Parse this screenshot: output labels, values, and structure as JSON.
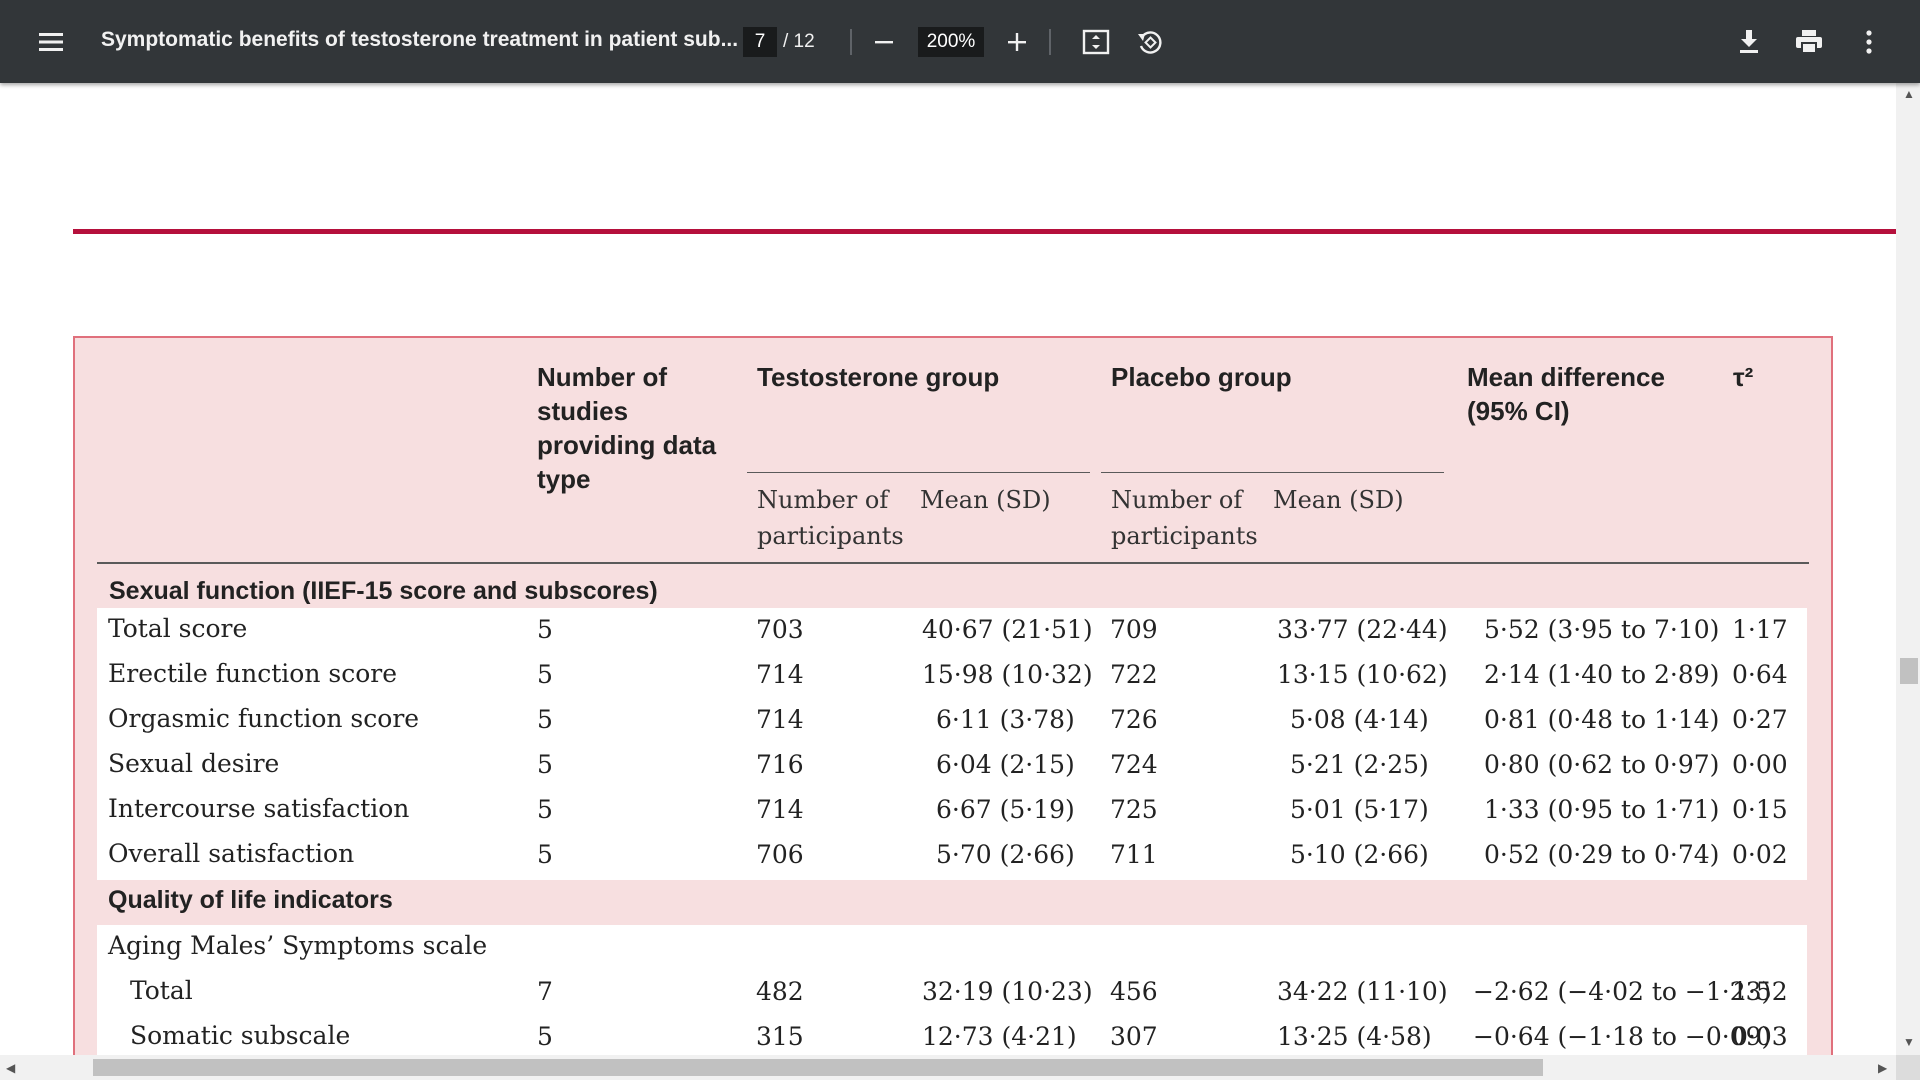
{
  "toolbar": {
    "menu_icon": "hamburger-menu-icon",
    "title": "Symptomatic benefits of testosterone treatment in patient sub...",
    "page_current": "7",
    "page_total": "/ 12",
    "zoom_out_icon": "minus-icon",
    "zoom_level": "200%",
    "zoom_in_icon": "plus-icon",
    "fit_page_icon": "fit-to-page-icon",
    "rotate_icon": "rotate-icon",
    "download_icon": "download-icon",
    "print_icon": "print-icon",
    "more_icon": "more-vert-icon"
  },
  "table": {
    "col_headers": {
      "studies": "Number of studies providing data type",
      "testosterone": "Testosterone group",
      "placebo": "Placebo group",
      "mean_diff": "Mean difference (95% CI)",
      "tau": "τ²"
    },
    "sub_headers": {
      "t_n": "Number of participants",
      "t_mean": "Mean (SD)",
      "p_n": "Number of participants",
      "p_mean": "Mean (SD)"
    },
    "section_sexual": "Sexual function (IIEF-15 score and subscores)",
    "sexual_rows": [
      {
        "label": "Total score",
        "studies": "5",
        "t_n": "703",
        "t_mean": "40·67 (21·51)",
        "p_n": "709",
        "p_mean": "33·77 (22·44)",
        "diff": "5·52 (3·95 to 7·10)",
        "tau": "1·17"
      },
      {
        "label": "Erectile function score",
        "studies": "5",
        "t_n": "714",
        "t_mean": "15·98 (10·32)",
        "p_n": "722",
        "p_mean": "13·15 (10·62)",
        "diff": "2·14 (1·40 to 2·89)",
        "tau": "0·64"
      },
      {
        "label": "Orgasmic function score",
        "studies": "5",
        "t_n": "714",
        "t_mean": "6·11 (3·78)",
        "p_n": "726",
        "p_mean": "5·08 (4·14)",
        "diff": "0·81 (0·48 to 1·14)",
        "tau": "0·27"
      },
      {
        "label": "Sexual desire",
        "studies": "5",
        "t_n": "716",
        "t_mean": "6·04 (2·15)",
        "p_n": "724",
        "p_mean": "5·21 (2·25)",
        "diff": "0·80 (0·62 to 0·97)",
        "tau": "0·00"
      },
      {
        "label": "Intercourse satisfaction",
        "studies": "5",
        "t_n": "714",
        "t_mean": "6·67 (5·19)",
        "p_n": "725",
        "p_mean": "5·01 (5·17)",
        "diff": "1·33 (0·95 to 1·71)",
        "tau": "0·15"
      },
      {
        "label": "Overall satisfaction",
        "studies": "5",
        "t_n": "706",
        "t_mean": "5·70 (2·66)",
        "p_n": "711",
        "p_mean": "5·10 (2·66)",
        "diff": "0·52 (0·29 to 0·74)",
        "tau": "0·02"
      }
    ],
    "section_qol": "Quality of life indicators",
    "ams_label": "Aging Males’ Symptoms scale",
    "qol_rows": [
      {
        "label": "Total",
        "studies": "7",
        "t_n": "482",
        "t_mean": "32·19 (10·23)",
        "p_n": "456",
        "p_mean": "34·22 (11·10)",
        "diff": "−2·62 (−4·02 to −1·23)",
        "tau": "1·52"
      },
      {
        "label": "Somatic subscale",
        "studies": "5",
        "t_n": "315",
        "t_mean": "12·73 (4·21)",
        "p_n": "307",
        "p_mean": "13·25 (4·58)",
        "diff": "−0·64 (−1·18 to −0·09)",
        "tau": "0·03"
      }
    ]
  }
}
